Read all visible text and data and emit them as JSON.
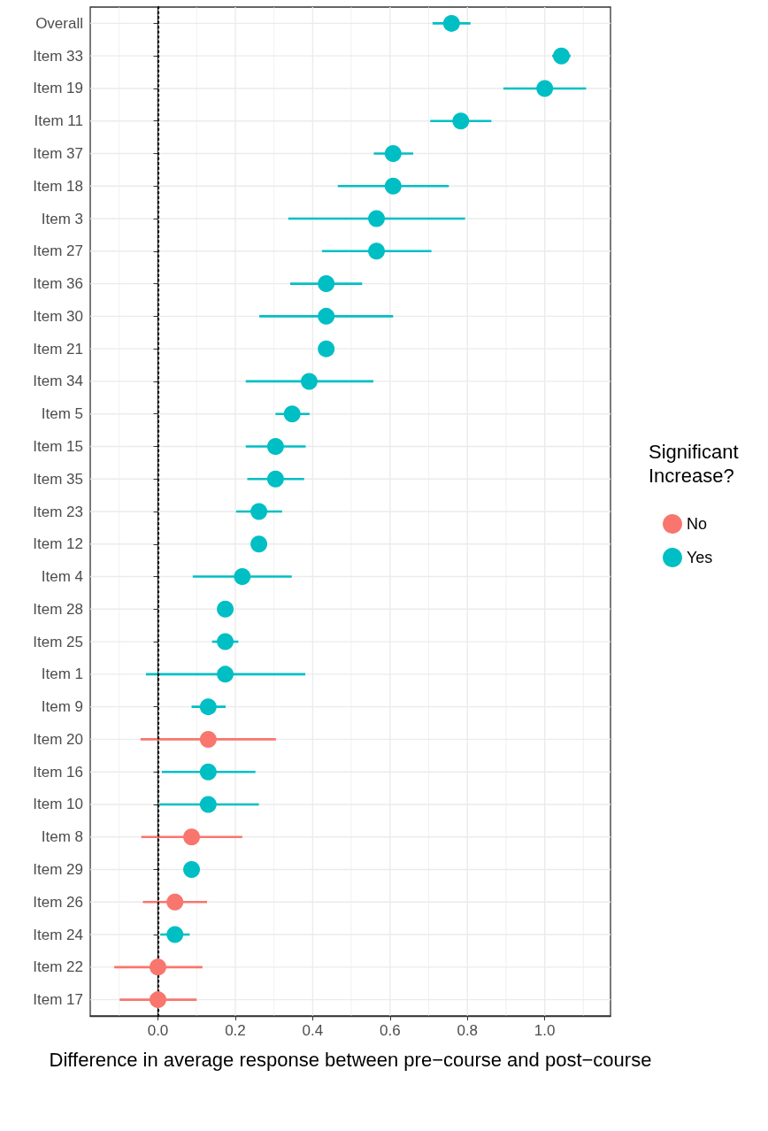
{
  "chart_data": {
    "type": "scatter",
    "orientation": "horizontal",
    "xlabel": "Difference in average response between pre−course and post−course",
    "legend_title": "Significant Increase?",
    "legend": "right",
    "grid": true,
    "marker": "circle",
    "categories": [
      "Overall",
      "Item 33",
      "Item 19",
      "Item 11",
      "Item 37",
      "Item 18",
      "Item 3",
      "Item 27",
      "Item 36",
      "Item 30",
      "Item 21",
      "Item 34",
      "Item 5",
      "Item 15",
      "Item 35",
      "Item 23",
      "Item 12",
      "Item 4",
      "Item 28",
      "Item 25",
      "Item 1",
      "Item 9",
      "Item 20",
      "Item 16",
      "Item 10",
      "Item 8",
      "Item 29",
      "Item 26",
      "Item 24",
      "Item 22",
      "Item 17"
    ],
    "xlim": [
      -0.175,
      1.17
    ],
    "xticks": [
      {
        "value": 0,
        "label": "0.0"
      },
      0.2,
      0.4,
      0.6,
      0.8,
      {
        "value": 1,
        "label": "1.0"
      }
    ],
    "ref_lines": [
      {
        "axis": "x",
        "value": 0,
        "color": "#000000",
        "line_style": "dotted"
      }
    ],
    "series": [
      {
        "name": "No",
        "color": "#f8766d",
        "values": [
          null,
          null,
          null,
          null,
          null,
          null,
          null,
          null,
          null,
          null,
          null,
          null,
          null,
          null,
          null,
          null,
          null,
          null,
          null,
          null,
          null,
          null,
          0.13,
          null,
          null,
          0.087,
          null,
          0.044,
          null,
          0,
          0
        ],
        "errors": [
          null,
          null,
          null,
          null,
          null,
          null,
          null,
          null,
          null,
          null,
          null,
          null,
          null,
          null,
          null,
          null,
          null,
          null,
          null,
          null,
          null,
          null,
          [
            -0.045,
            0.305
          ],
          null,
          null,
          [
            -0.043,
            0.218
          ],
          null,
          [
            -0.039,
            0.127
          ],
          null,
          [
            -0.113,
            0.115
          ],
          [
            -0.099,
            0.1
          ]
        ]
      },
      {
        "name": "Yes",
        "color": "#00bfc4",
        "values": [
          0.759,
          1.043,
          1.0,
          0.783,
          0.608,
          0.608,
          0.565,
          0.565,
          0.435,
          0.435,
          0.435,
          0.391,
          0.347,
          0.304,
          0.304,
          0.261,
          0.261,
          0.218,
          0.174,
          0.174,
          0.174,
          0.13,
          null,
          0.13,
          0.13,
          null,
          0.087,
          null,
          0.044,
          null,
          null
        ],
        "errors": [
          [
            0.71,
            0.808
          ],
          [
            1.019,
            1.067
          ],
          [
            0.893,
            1.107
          ],
          [
            0.704,
            0.862
          ],
          [
            0.558,
            0.66
          ],
          [
            0.465,
            0.752
          ],
          [
            0.337,
            0.794
          ],
          [
            0.424,
            0.707
          ],
          [
            0.342,
            0.528
          ],
          [
            0.262,
            0.608
          ],
          null,
          [
            0.227,
            0.557
          ],
          [
            0.304,
            0.392
          ],
          [
            0.227,
            0.382
          ],
          [
            0.231,
            0.378
          ],
          [
            0.202,
            0.321
          ],
          null,
          [
            0.09,
            0.346
          ],
          null,
          [
            0.14,
            0.208
          ],
          [
            -0.031,
            0.381
          ],
          [
            0.087,
            0.175
          ],
          null,
          [
            0.01,
            0.252
          ],
          [
            0.002,
            0.261
          ],
          null,
          null,
          null,
          [
            0.006,
            0.082
          ],
          null,
          null
        ]
      }
    ]
  }
}
